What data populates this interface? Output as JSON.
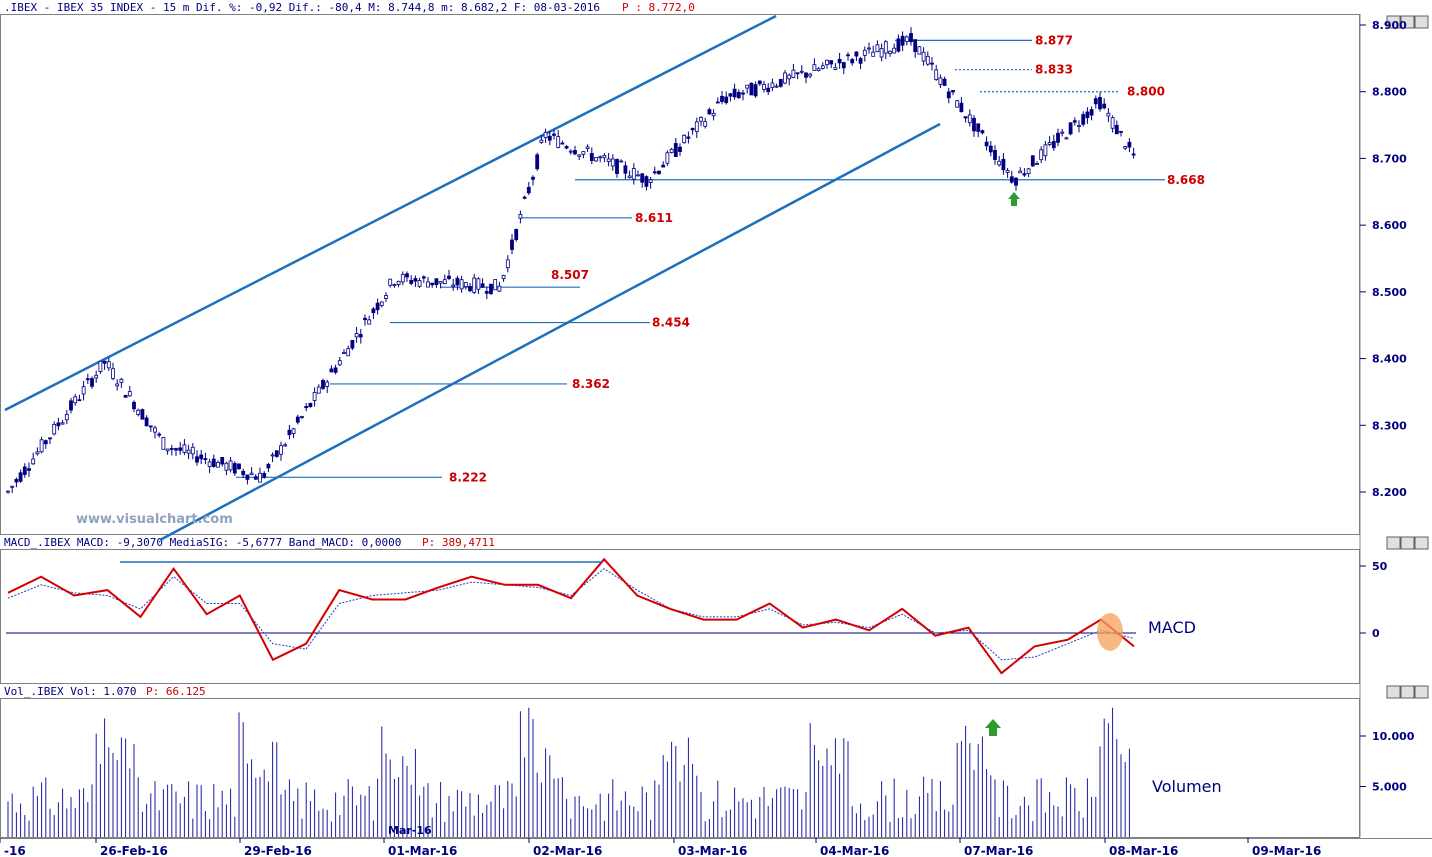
{
  "chart_data": [
    {
      "type": "candlestick",
      "info": ".IBEX - IBEX 35 INDEX - 15 m Dif. %: -0,92 Dif.: -80,4 M: 8.744,8 m: 8.682,2 F: 08-03-2016",
      "last_price": "P : 8.772,0",
      "watermark": "www.visualchart.com",
      "y_ticks": [
        "8.900",
        "8.800",
        "8.700",
        "8.600",
        "8.500",
        "8.400",
        "8.300",
        "8.200"
      ],
      "ylim": [
        8140,
        8920
      ],
      "date_labels": [
        "-16",
        "26-Feb-16",
        "29-Feb-16",
        "01-Mar-16",
        "02-Mar-16",
        "03-Mar-16",
        "04-Mar-16",
        "07-Mar-16",
        "08-Mar-16",
        "09-Mar-16"
      ],
      "month_label": "Mar-16",
      "levels": [
        {
          "label": "8.877",
          "value": 8877,
          "style": "solid"
        },
        {
          "label": "8.833",
          "value": 8833,
          "style": "dashed"
        },
        {
          "label": "8.800",
          "value": 8800,
          "style": "dashed"
        },
        {
          "label": "8.668",
          "value": 8668,
          "style": "solid"
        },
        {
          "label": "8.611",
          "value": 8611,
          "style": "solid"
        },
        {
          "label": "8.507",
          "value": 8507,
          "style": "solid"
        },
        {
          "label": "8.454",
          "value": 8454,
          "style": "solid"
        },
        {
          "label": "8.362",
          "value": 8362,
          "style": "solid"
        },
        {
          "label": "8.222",
          "value": 8222,
          "style": "solid"
        }
      ],
      "key_points": [
        {
          "x": "25-Feb",
          "y": 8200
        },
        {
          "x": "26-Feb",
          "y": 8395
        },
        {
          "x": "26-Feb",
          "y": 8270
        },
        {
          "x": "29-Feb",
          "y": 8222
        },
        {
          "x": "01-Mar",
          "y": 8520
        },
        {
          "x": "01-Mar",
          "y": 8507
        },
        {
          "x": "02-Mar",
          "y": 8735
        },
        {
          "x": "02-Mar",
          "y": 8668
        },
        {
          "x": "03-Mar",
          "y": 8790
        },
        {
          "x": "04-Mar",
          "y": 8877
        },
        {
          "x": "07-Mar",
          "y": 8668
        },
        {
          "x": "08-Mar",
          "y": 8785
        },
        {
          "x": "08-Mar",
          "y": 8700
        }
      ]
    },
    {
      "type": "line",
      "info": "MACD_.IBEX MACD: -9,3070 MediaSIG: -5,6777 Band_MACD: 0,0000",
      "last_price": "P: 389,4711",
      "label": "MACD",
      "y_ticks": [
        "50",
        "0"
      ],
      "ylim": [
        -40,
        60
      ],
      "series": [
        {
          "name": "MACD",
          "values": [
            30,
            42,
            28,
            32,
            12,
            48,
            14,
            28,
            -20,
            -8,
            32,
            25,
            25,
            34,
            42,
            36,
            36,
            26,
            55,
            28,
            18,
            10,
            10,
            22,
            4,
            10,
            2,
            18,
            -2,
            4,
            -30,
            -10,
            -5,
            10,
            -10
          ]
        },
        {
          "name": "MediaSIG",
          "values": [
            26,
            36,
            30,
            28,
            18,
            42,
            22,
            22,
            -8,
            -12,
            22,
            28,
            30,
            32,
            38,
            36,
            34,
            28,
            48,
            32,
            18,
            12,
            12,
            18,
            6,
            8,
            4,
            14,
            0,
            2,
            -20,
            -18,
            -8,
            2,
            -4
          ]
        }
      ]
    },
    {
      "type": "bar",
      "info": "Vol_.IBEX Vol: 1.070",
      "last_price": "P: 66.125",
      "label": "Volumen",
      "y_ticks": [
        "10.000",
        "5.000"
      ],
      "ylim": [
        0,
        13000
      ]
    }
  ]
}
